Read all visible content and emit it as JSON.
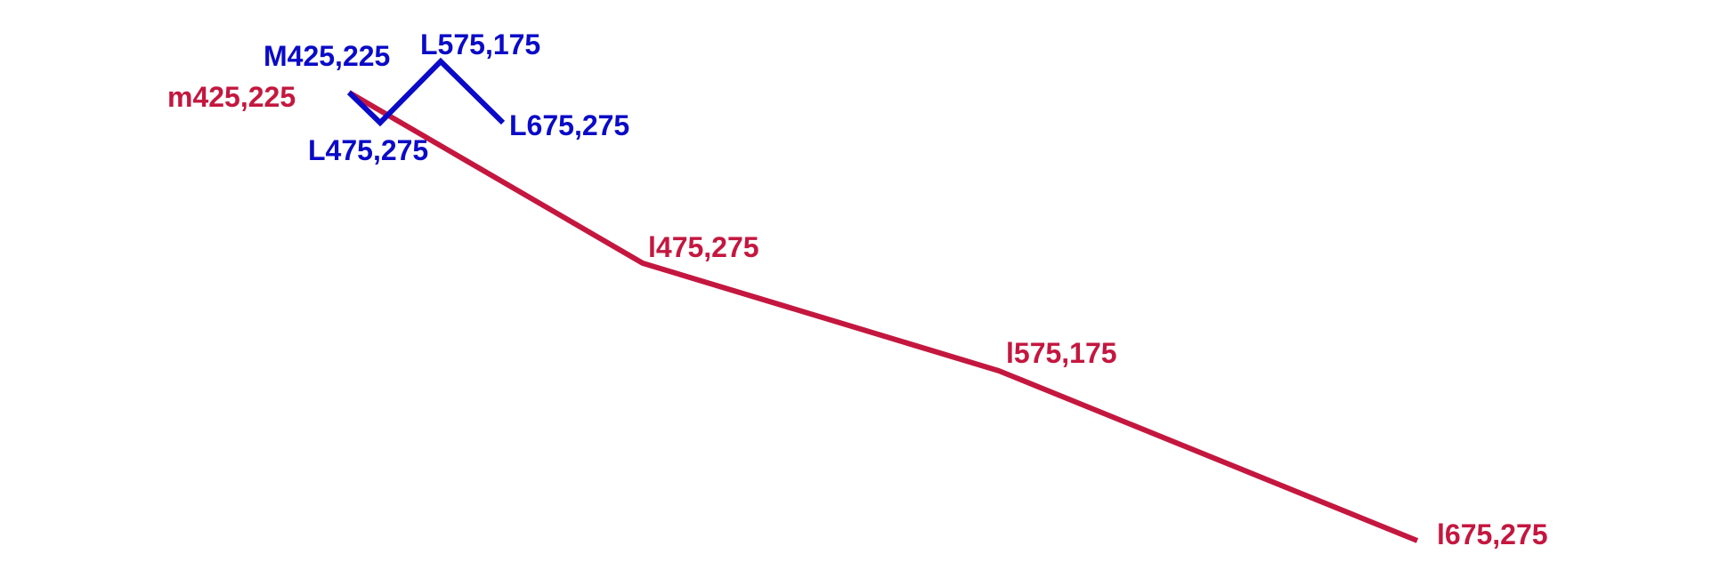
{
  "colors": {
    "absolute_path": "#0a0ac8",
    "relative_path": "#c4173f",
    "background": "#ffffff"
  },
  "absolute": {
    "labels": {
      "move": "M425,225",
      "line1": "L475,275",
      "line2": "L575,175",
      "line3": "L675,275"
    }
  },
  "relative": {
    "labels": {
      "move": "m425,225",
      "line1": "l475,275",
      "line2": "l575,175",
      "line3": "l675,275"
    }
  }
}
